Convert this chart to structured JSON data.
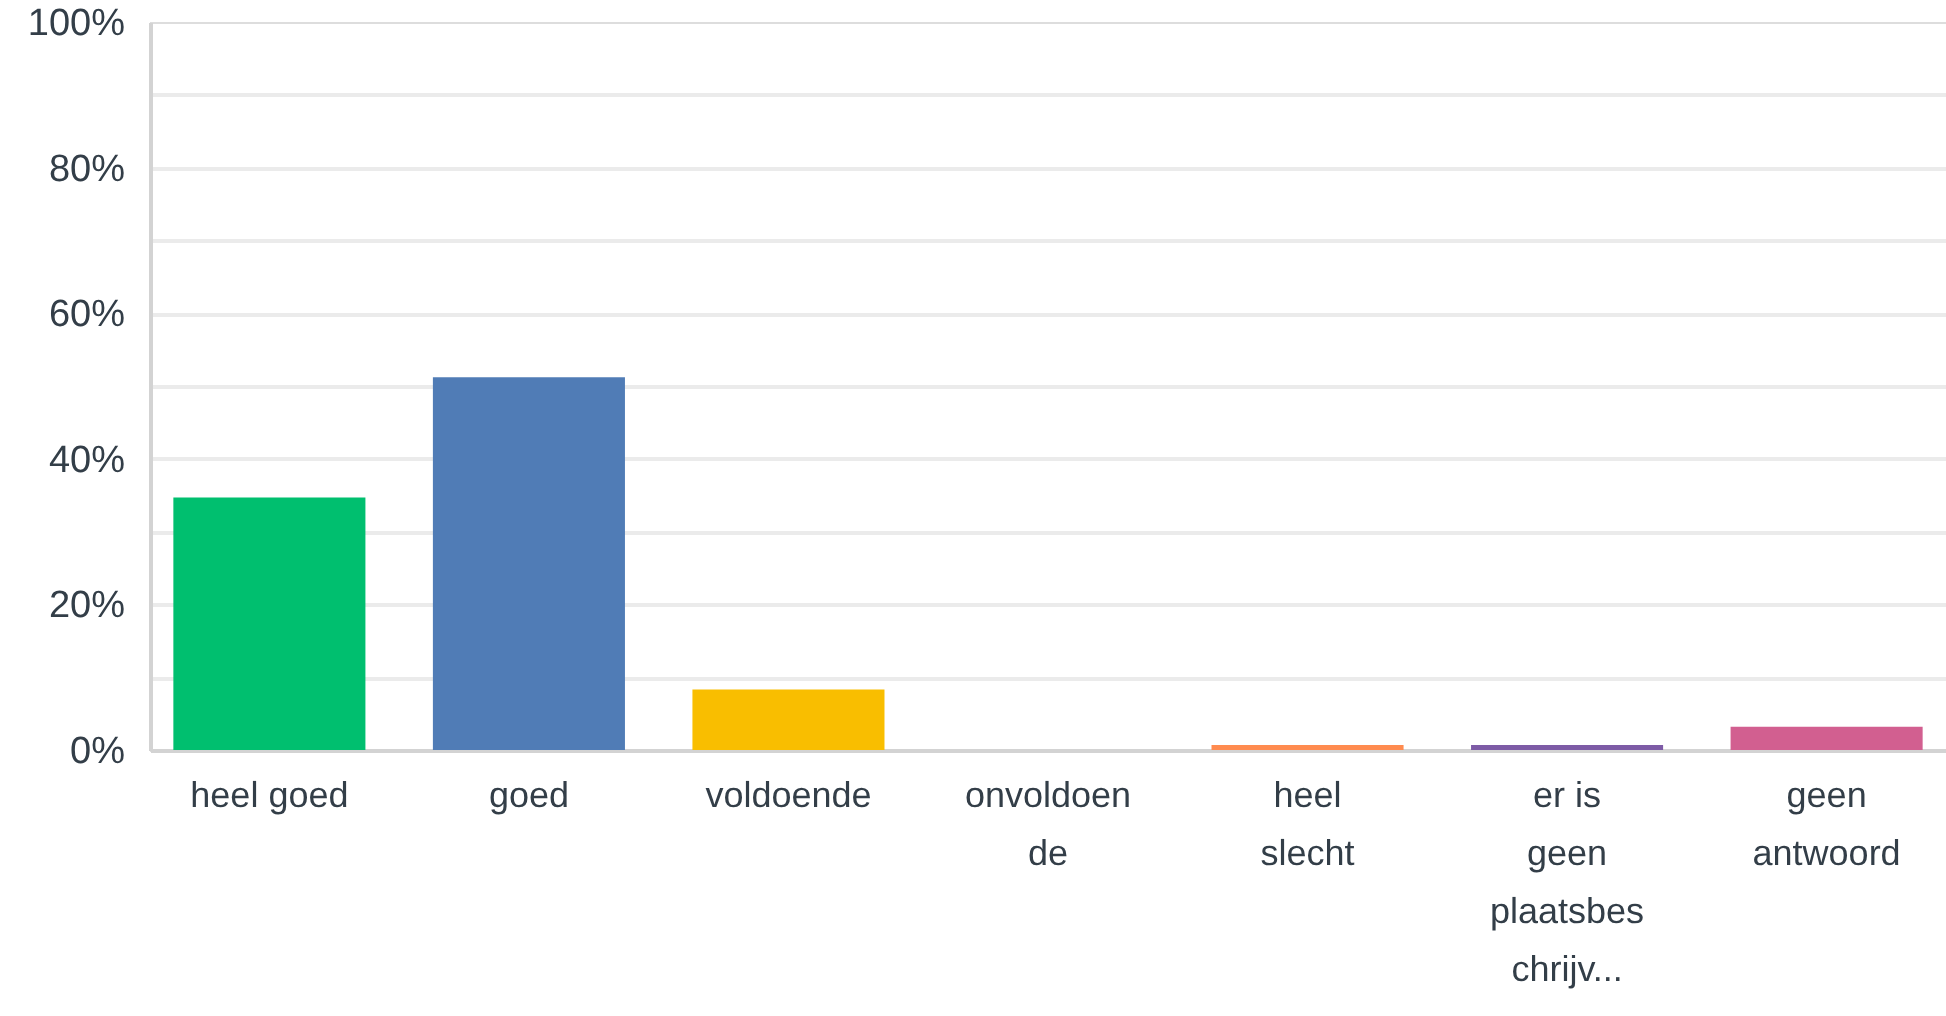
{
  "chart_data": {
    "type": "bar",
    "categories": [
      "heel goed",
      "goed",
      "voldoende",
      "onvoldoende",
      "heel slecht",
      "er is geen plaatsbeschrijv...",
      "geen antwoord"
    ],
    "values": [
      34.7,
      51.2,
      8.3,
      0,
      0.7,
      0.7,
      3.2
    ],
    "colors": [
      "#00bf6f",
      "#507cb6",
      "#f9be00",
      "#6bc8cd",
      "#ff8b4f",
      "#7d5ba6",
      "#d25f90"
    ],
    "ylim": [
      0,
      100
    ],
    "yticks": [
      {
        "value": 0,
        "label": "0%"
      },
      {
        "value": 10,
        "label": null
      },
      {
        "value": 20,
        "label": "20%"
      },
      {
        "value": 30,
        "label": null
      },
      {
        "value": 40,
        "label": "40%"
      },
      {
        "value": 50,
        "label": null
      },
      {
        "value": 60,
        "label": "60%"
      },
      {
        "value": 70,
        "label": null
      },
      {
        "value": 80,
        "label": "80%"
      },
      {
        "value": 90,
        "label": null
      },
      {
        "value": 100,
        "label": "100%"
      }
    ],
    "grid": "y"
  }
}
